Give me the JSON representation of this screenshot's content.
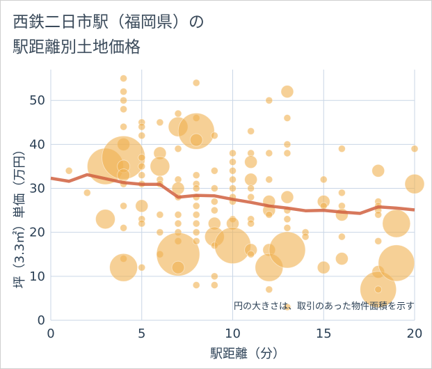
{
  "title_line1": "西鉄二日市駅（福岡県）の",
  "title_line2": "駅距離別土地価格",
  "chart_data": {
    "type": "scatter",
    "xlabel": "駅距離（分）",
    "ylabel": "坪（3.3㎡）単価（万円）",
    "xlim": [
      0,
      20
    ],
    "ylim": [
      0,
      57
    ],
    "x_ticks": [
      "0",
      "5",
      "10",
      "15",
      "20"
    ],
    "y_ticks": [
      "0",
      "10",
      "20",
      "30",
      "40",
      "50"
    ],
    "grid": true,
    "annotation": "円の大きさは、取引のあった物件面積を示す",
    "colors": {
      "bubble": "#f0b050",
      "trend": "#d06040",
      "grid": "#c9d6e6"
    },
    "points": [
      {
        "x": 1,
        "y": 34,
        "s": 1
      },
      {
        "x": 2,
        "y": 29,
        "s": 1
      },
      {
        "x": 3,
        "y": 35,
        "s": 5
      },
      {
        "x": 3,
        "y": 23,
        "s": 3
      },
      {
        "x": 4,
        "y": 55,
        "s": 1
      },
      {
        "x": 4,
        "y": 52,
        "s": 1
      },
      {
        "x": 4,
        "y": 50,
        "s": 1
      },
      {
        "x": 4,
        "y": 48,
        "s": 1
      },
      {
        "x": 4,
        "y": 44,
        "s": 1
      },
      {
        "x": 4,
        "y": 40,
        "s": 2
      },
      {
        "x": 4,
        "y": 37,
        "s": 6
      },
      {
        "x": 4,
        "y": 35,
        "s": 2
      },
      {
        "x": 4,
        "y": 33,
        "s": 2
      },
      {
        "x": 4,
        "y": 31,
        "s": 1
      },
      {
        "x": 4,
        "y": 26,
        "s": 1
      },
      {
        "x": 4,
        "y": 21,
        "s": 1
      },
      {
        "x": 4,
        "y": 14,
        "s": 1
      },
      {
        "x": 4,
        "y": 12,
        "s": 4
      },
      {
        "x": 5,
        "y": 45,
        "s": 1
      },
      {
        "x": 5,
        "y": 44,
        "s": 1
      },
      {
        "x": 5,
        "y": 42,
        "s": 1
      },
      {
        "x": 5,
        "y": 37,
        "s": 1
      },
      {
        "x": 5,
        "y": 35,
        "s": 1
      },
      {
        "x": 5,
        "y": 33,
        "s": 1
      },
      {
        "x": 5,
        "y": 31,
        "s": 1
      },
      {
        "x": 5,
        "y": 26,
        "s": 2
      },
      {
        "x": 5,
        "y": 23,
        "s": 1
      },
      {
        "x": 5,
        "y": 22,
        "s": 1
      },
      {
        "x": 5,
        "y": 12,
        "s": 1
      },
      {
        "x": 6,
        "y": 45,
        "s": 1
      },
      {
        "x": 6,
        "y": 38,
        "s": 2
      },
      {
        "x": 6,
        "y": 35,
        "s": 3
      },
      {
        "x": 6,
        "y": 32,
        "s": 1
      },
      {
        "x": 6,
        "y": 31,
        "s": 1
      },
      {
        "x": 6,
        "y": 24,
        "s": 1
      },
      {
        "x": 6,
        "y": 20,
        "s": 1
      },
      {
        "x": 6,
        "y": 15,
        "s": 1
      },
      {
        "x": 7,
        "y": 47,
        "s": 1
      },
      {
        "x": 7,
        "y": 44,
        "s": 3
      },
      {
        "x": 7,
        "y": 39,
        "s": 1
      },
      {
        "x": 7,
        "y": 32,
        "s": 1
      },
      {
        "x": 7,
        "y": 30,
        "s": 2
      },
      {
        "x": 7,
        "y": 28,
        "s": 1
      },
      {
        "x": 7,
        "y": 24,
        "s": 1
      },
      {
        "x": 7,
        "y": 22,
        "s": 1
      },
      {
        "x": 7,
        "y": 20,
        "s": 1
      },
      {
        "x": 7,
        "y": 18,
        "s": 1
      },
      {
        "x": 7,
        "y": 15,
        "s": 6
      },
      {
        "x": 7,
        "y": 12,
        "s": 2
      },
      {
        "x": 8,
        "y": 54,
        "s": 1
      },
      {
        "x": 8,
        "y": 46,
        "s": 1
      },
      {
        "x": 8,
        "y": 43,
        "s": 5
      },
      {
        "x": 8,
        "y": 41,
        "s": 2
      },
      {
        "x": 8,
        "y": 33,
        "s": 1
      },
      {
        "x": 8,
        "y": 31,
        "s": 1
      },
      {
        "x": 8,
        "y": 30,
        "s": 1
      },
      {
        "x": 8,
        "y": 28,
        "s": 1
      },
      {
        "x": 8,
        "y": 26,
        "s": 1
      },
      {
        "x": 8,
        "y": 24,
        "s": 1
      },
      {
        "x": 8,
        "y": 22,
        "s": 1
      },
      {
        "x": 8,
        "y": 20,
        "s": 1
      },
      {
        "x": 8,
        "y": 18,
        "s": 1
      },
      {
        "x": 8,
        "y": 8,
        "s": 1
      },
      {
        "x": 9,
        "y": 42,
        "s": 1
      },
      {
        "x": 9,
        "y": 34,
        "s": 1
      },
      {
        "x": 9,
        "y": 30,
        "s": 1
      },
      {
        "x": 9,
        "y": 27,
        "s": 1
      },
      {
        "x": 9,
        "y": 25,
        "s": 1
      },
      {
        "x": 9,
        "y": 22,
        "s": 2
      },
      {
        "x": 9,
        "y": 19,
        "s": 3
      },
      {
        "x": 9,
        "y": 17,
        "s": 1
      },
      {
        "x": 9,
        "y": 10,
        "s": 1
      },
      {
        "x": 9,
        "y": 8,
        "s": 1
      },
      {
        "x": 10,
        "y": 38,
        "s": 1
      },
      {
        "x": 10,
        "y": 36,
        "s": 1
      },
      {
        "x": 10,
        "y": 34,
        "s": 1
      },
      {
        "x": 10,
        "y": 32,
        "s": 1
      },
      {
        "x": 10,
        "y": 30,
        "s": 1
      },
      {
        "x": 10,
        "y": 28,
        "s": 1
      },
      {
        "x": 10,
        "y": 27,
        "s": 1
      },
      {
        "x": 10,
        "y": 23,
        "s": 1
      },
      {
        "x": 10,
        "y": 22,
        "s": 2
      },
      {
        "x": 10,
        "y": 17,
        "s": 5
      },
      {
        "x": 11,
        "y": 43,
        "s": 1
      },
      {
        "x": 11,
        "y": 38,
        "s": 1
      },
      {
        "x": 11,
        "y": 36,
        "s": 2
      },
      {
        "x": 11,
        "y": 32,
        "s": 2
      },
      {
        "x": 11,
        "y": 30,
        "s": 1
      },
      {
        "x": 11,
        "y": 28,
        "s": 1
      },
      {
        "x": 11,
        "y": 23,
        "s": 1
      },
      {
        "x": 11,
        "y": 22,
        "s": 1
      },
      {
        "x": 11,
        "y": 16,
        "s": 2
      },
      {
        "x": 11,
        "y": 15,
        "s": 1
      },
      {
        "x": 12,
        "y": 50,
        "s": 1
      },
      {
        "x": 12,
        "y": 38,
        "s": 1
      },
      {
        "x": 12,
        "y": 32,
        "s": 1
      },
      {
        "x": 12,
        "y": 27,
        "s": 2
      },
      {
        "x": 12,
        "y": 25,
        "s": 2
      },
      {
        "x": 12,
        "y": 24,
        "s": 1
      },
      {
        "x": 12,
        "y": 16,
        "s": 2
      },
      {
        "x": 12,
        "y": 12,
        "s": 4
      },
      {
        "x": 12,
        "y": 7,
        "s": 1
      },
      {
        "x": 13,
        "y": 52,
        "s": 2
      },
      {
        "x": 13,
        "y": 46,
        "s": 1
      },
      {
        "x": 13,
        "y": 40,
        "s": 1
      },
      {
        "x": 13,
        "y": 38,
        "s": 1
      },
      {
        "x": 13,
        "y": 28,
        "s": 2
      },
      {
        "x": 13,
        "y": 25,
        "s": 1
      },
      {
        "x": 13,
        "y": 23,
        "s": 1
      },
      {
        "x": 13,
        "y": 21,
        "s": 1
      },
      {
        "x": 13,
        "y": 16,
        "s": 5
      },
      {
        "x": 13,
        "y": 3,
        "s": 1
      },
      {
        "x": 14,
        "y": 20,
        "s": 1
      },
      {
        "x": 14,
        "y": 19,
        "s": 1
      },
      {
        "x": 15,
        "y": 32,
        "s": 1
      },
      {
        "x": 15,
        "y": 27,
        "s": 2
      },
      {
        "x": 15,
        "y": 26,
        "s": 1
      },
      {
        "x": 15,
        "y": 12,
        "s": 2
      },
      {
        "x": 16,
        "y": 39,
        "s": 1
      },
      {
        "x": 16,
        "y": 29,
        "s": 1
      },
      {
        "x": 16,
        "y": 26,
        "s": 1
      },
      {
        "x": 16,
        "y": 24,
        "s": 2
      },
      {
        "x": 16,
        "y": 19,
        "s": 1
      },
      {
        "x": 16,
        "y": 14,
        "s": 2
      },
      {
        "x": 18,
        "y": 34,
        "s": 2
      },
      {
        "x": 18,
        "y": 27,
        "s": 1
      },
      {
        "x": 18,
        "y": 26,
        "s": 1
      },
      {
        "x": 18,
        "y": 25,
        "s": 1
      },
      {
        "x": 18,
        "y": 24,
        "s": 1
      },
      {
        "x": 18,
        "y": 18,
        "s": 1
      },
      {
        "x": 18,
        "y": 11,
        "s": 2
      },
      {
        "x": 18,
        "y": 7,
        "s": 5
      },
      {
        "x": 18,
        "y": 7,
        "s": 1
      },
      {
        "x": 19,
        "y": 22,
        "s": 4
      },
      {
        "x": 19,
        "y": 13,
        "s": 5
      },
      {
        "x": 20,
        "y": 39,
        "s": 1
      },
      {
        "x": 20,
        "y": 31,
        "s": 3
      }
    ],
    "trend": {
      "x": [
        0,
        1,
        2,
        3,
        4,
        5,
        6,
        7,
        8,
        9,
        10,
        11,
        12,
        13,
        14,
        15,
        16,
        17,
        18,
        19,
        20
      ],
      "y": [
        32.3,
        31.6,
        33.1,
        32.2,
        31.3,
        30.9,
        30.9,
        28.0,
        28.4,
        28.3,
        27.5,
        26.8,
        26.0,
        25.5,
        24.9,
        25.0,
        24.6,
        24.3,
        25.8,
        25.5,
        25.1
      ]
    }
  }
}
